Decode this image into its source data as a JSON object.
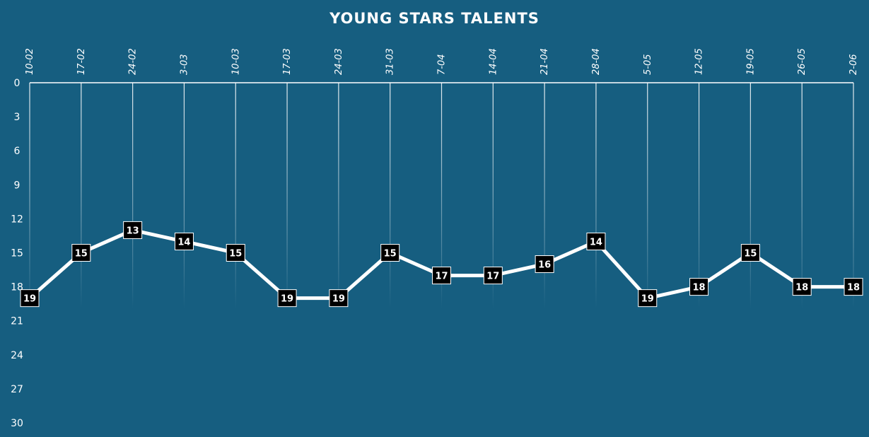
{
  "chart_data": {
    "type": "line",
    "title": "YOUNG STARS TALENTS",
    "xlabel": "",
    "ylabel": "",
    "x": [
      "10-02",
      "17-02",
      "24-02",
      "3-03",
      "10-03",
      "17-03",
      "24-03",
      "31-03",
      "7-04",
      "14-04",
      "21-04",
      "28-04",
      "5-05",
      "12-05",
      "19-05",
      "26-05",
      "2-06"
    ],
    "series": [
      {
        "values": [
          19,
          15,
          13,
          14,
          15,
          19,
          19,
          15,
          17,
          17,
          16,
          14,
          19,
          18,
          15,
          18,
          18
        ]
      }
    ],
    "ylim": [
      0,
      30
    ],
    "y_inverted": true,
    "y_ticks": [
      0,
      3,
      6,
      9,
      12,
      15,
      18,
      21,
      24,
      27,
      30
    ],
    "x_axis_position": "top",
    "grid": "vertical",
    "legend": "none",
    "colors": {
      "background": "#165e80",
      "line": "#ffffff",
      "marker": "#000000",
      "text": "#ffffff"
    }
  }
}
